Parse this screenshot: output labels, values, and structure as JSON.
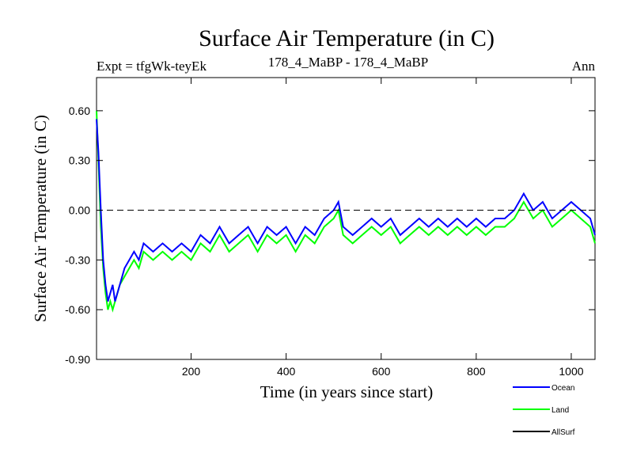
{
  "chart_data": {
    "type": "line",
    "title": "Surface Air Temperature (in C)",
    "subtitle_left": "Expt = tfgWk-teyEk",
    "subtitle_center": "178_4_MaBP - 178_4_MaBP",
    "subtitle_right": "Ann",
    "xlabel": "Time (in years since start)",
    "ylabel": "Surface Air Temperature (in C)",
    "xlim": [
      1,
      1050
    ],
    "ylim": [
      -0.9,
      0.8
    ],
    "x_ticks": [
      200,
      400,
      600,
      800,
      1000
    ],
    "x_tick_labels": [
      "200",
      "400",
      "600",
      "800",
      "1000"
    ],
    "y_ticks": [
      -0.9,
      -0.6,
      -0.3,
      0.0,
      0.3,
      0.6
    ],
    "y_tick_labels": [
      "-0.90",
      "-0.60",
      "-0.30",
      "0.00",
      "0.30",
      "0.60"
    ],
    "reference_line": 0.0,
    "legend_position": "bottom-right, below plot",
    "series": [
      {
        "name": "Ocean",
        "color": "#0000ff",
        "x": [
          1,
          5,
          10,
          15,
          20,
          25,
          30,
          35,
          40,
          50,
          60,
          70,
          80,
          90,
          100,
          120,
          140,
          160,
          180,
          200,
          220,
          240,
          260,
          280,
          300,
          320,
          340,
          360,
          380,
          400,
          420,
          440,
          460,
          480,
          500,
          510,
          520,
          540,
          560,
          580,
          600,
          620,
          640,
          660,
          680,
          700,
          720,
          740,
          760,
          780,
          800,
          820,
          840,
          860,
          880,
          900,
          920,
          940,
          960,
          980,
          1000,
          1020,
          1040,
          1050
        ],
        "values": [
          0.55,
          0.35,
          0.0,
          -0.3,
          -0.45,
          -0.55,
          -0.5,
          -0.45,
          -0.55,
          -0.45,
          -0.35,
          -0.3,
          -0.25,
          -0.3,
          -0.2,
          -0.25,
          -0.2,
          -0.25,
          -0.2,
          -0.25,
          -0.15,
          -0.2,
          -0.1,
          -0.2,
          -0.15,
          -0.1,
          -0.2,
          -0.1,
          -0.15,
          -0.1,
          -0.2,
          -0.1,
          -0.15,
          -0.05,
          0.0,
          0.05,
          -0.1,
          -0.15,
          -0.1,
          -0.05,
          -0.1,
          -0.05,
          -0.15,
          -0.1,
          -0.05,
          -0.1,
          -0.05,
          -0.1,
          -0.05,
          -0.1,
          -0.05,
          -0.1,
          -0.05,
          -0.05,
          0.0,
          0.1,
          0.0,
          0.05,
          -0.05,
          0.0,
          0.05,
          0.0,
          -0.05,
          -0.15
        ]
      },
      {
        "name": "Land",
        "color": "#00ff00",
        "x": [
          1,
          5,
          10,
          15,
          20,
          25,
          30,
          35,
          40,
          50,
          60,
          70,
          80,
          90,
          100,
          120,
          140,
          160,
          180,
          200,
          220,
          240,
          260,
          280,
          300,
          320,
          340,
          360,
          380,
          400,
          420,
          440,
          460,
          480,
          500,
          510,
          520,
          540,
          560,
          580,
          600,
          620,
          640,
          660,
          680,
          700,
          720,
          740,
          760,
          780,
          800,
          820,
          840,
          860,
          880,
          900,
          920,
          940,
          960,
          980,
          1000,
          1020,
          1040,
          1050
        ],
        "values": [
          0.6,
          0.3,
          -0.1,
          -0.35,
          -0.5,
          -0.6,
          -0.55,
          -0.6,
          -0.55,
          -0.45,
          -0.4,
          -0.35,
          -0.3,
          -0.35,
          -0.25,
          -0.3,
          -0.25,
          -0.3,
          -0.25,
          -0.3,
          -0.2,
          -0.25,
          -0.15,
          -0.25,
          -0.2,
          -0.15,
          -0.25,
          -0.15,
          -0.2,
          -0.15,
          -0.25,
          -0.15,
          -0.2,
          -0.1,
          -0.05,
          0.0,
          -0.15,
          -0.2,
          -0.15,
          -0.1,
          -0.15,
          -0.1,
          -0.2,
          -0.15,
          -0.1,
          -0.15,
          -0.1,
          -0.15,
          -0.1,
          -0.15,
          -0.1,
          -0.15,
          -0.1,
          -0.1,
          -0.05,
          0.05,
          -0.05,
          0.0,
          -0.1,
          -0.05,
          0.0,
          -0.05,
          -0.1,
          -0.2
        ]
      },
      {
        "name": "AllSurf",
        "color": "#000000",
        "x": [],
        "values": []
      }
    ]
  }
}
